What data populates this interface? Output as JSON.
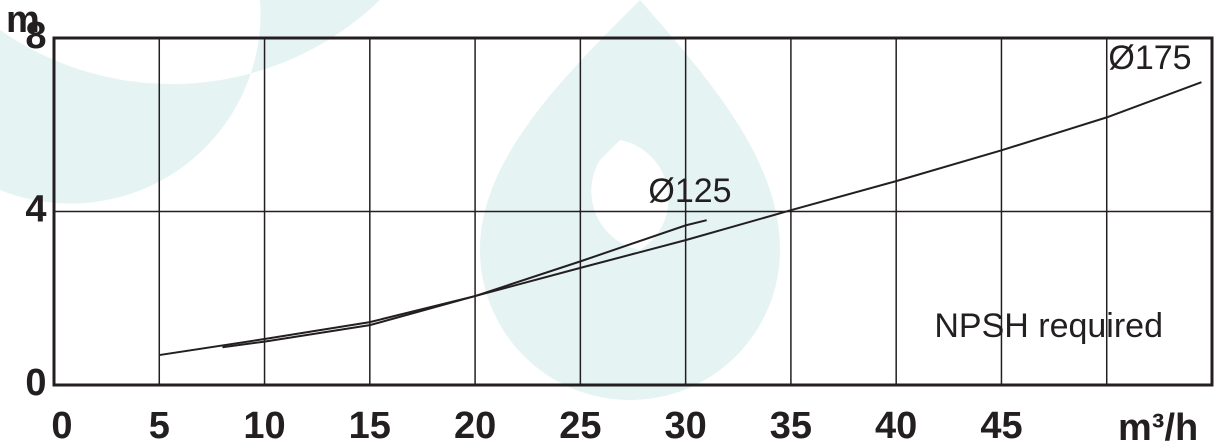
{
  "chart_data": {
    "type": "line",
    "annotation": "NPSH required",
    "y_unit": "m",
    "x_unit": "m³/h",
    "xlim": [
      0,
      55
    ],
    "ylim": [
      0,
      8
    ],
    "xticks": [
      0,
      5,
      10,
      15,
      20,
      25,
      30,
      35,
      40,
      45
    ],
    "xgrid": [
      5,
      10,
      15,
      20,
      25,
      30,
      35,
      40,
      45,
      50
    ],
    "yticks": [
      0,
      4,
      8
    ],
    "grid": true,
    "series": [
      {
        "name": "Ø175",
        "color": "#231f20",
        "x": [
          5,
          10,
          15,
          20,
          25,
          30,
          35,
          40,
          45,
          50,
          54.5
        ],
        "values": [
          0.69,
          1.06,
          1.45,
          2.05,
          2.7,
          3.34,
          4.03,
          4.7,
          5.41,
          6.17,
          6.98
        ]
      },
      {
        "name": "Ø125",
        "color": "#231f20",
        "x": [
          8,
          10,
          15,
          20,
          25,
          30,
          31
        ],
        "values": [
          0.87,
          1.0,
          1.38,
          2.05,
          2.85,
          3.68,
          3.8
        ]
      }
    ]
  }
}
